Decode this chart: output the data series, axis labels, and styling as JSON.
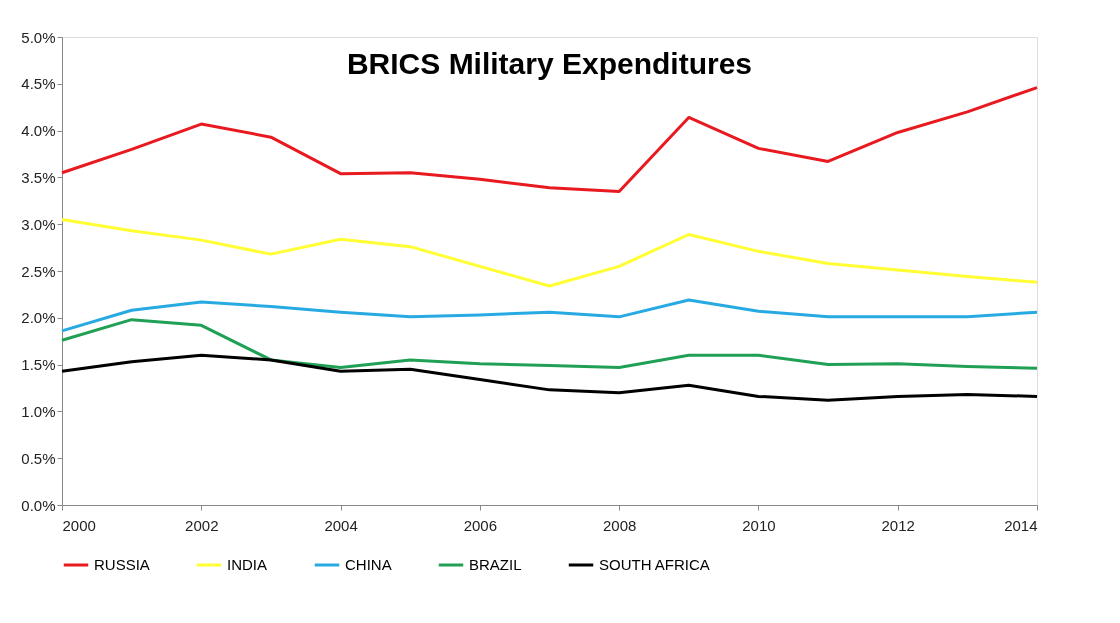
{
  "chart_data": {
    "type": "line",
    "title": "BRICS Military Expenditures",
    "x": [
      2000,
      2001,
      2002,
      2003,
      2004,
      2005,
      2006,
      2007,
      2008,
      2009,
      2010,
      2011,
      2012,
      2013,
      2014
    ],
    "series": [
      {
        "name": "RUSSIA",
        "color": "#e8191f",
        "values": [
          3.55,
          3.8,
          4.07,
          3.93,
          3.54,
          3.55,
          3.48,
          3.39,
          3.35,
          4.14,
          3.81,
          3.67,
          3.98,
          4.2,
          4.46
        ]
      },
      {
        "name": "INDIA",
        "color": "#ffff33",
        "values": [
          3.05,
          2.93,
          2.83,
          2.68,
          2.84,
          2.76,
          2.55,
          2.34,
          2.55,
          2.89,
          2.71,
          2.58,
          2.51,
          2.44,
          2.38
        ]
      },
      {
        "name": "CHINA",
        "color": "#27aae1",
        "values": [
          1.86,
          2.08,
          2.17,
          2.12,
          2.06,
          2.01,
          2.03,
          2.06,
          2.01,
          2.19,
          2.07,
          2.01,
          2.01,
          2.01,
          2.06
        ]
      },
      {
        "name": "BRAZIL",
        "color": "#1fa055",
        "values": [
          1.76,
          1.98,
          1.92,
          1.55,
          1.47,
          1.55,
          1.51,
          1.49,
          1.47,
          1.6,
          1.6,
          1.5,
          1.51,
          1.48,
          1.46
        ]
      },
      {
        "name": "SOUTH AFRICA",
        "color": "#000000",
        "values": [
          1.43,
          1.53,
          1.6,
          1.55,
          1.43,
          1.45,
          1.34,
          1.23,
          1.2,
          1.28,
          1.16,
          1.12,
          1.16,
          1.18,
          1.16
        ]
      }
    ],
    "xlim": [
      2000,
      2014
    ],
    "xticks": [
      2000,
      2002,
      2004,
      2006,
      2008,
      2010,
      2012,
      2014
    ],
    "ylim": [
      0,
      5
    ],
    "yticks": [
      {
        "value": 0,
        "label": "0.0%"
      },
      {
        "value": 0.5,
        "label": "0.5%"
      },
      {
        "value": 1,
        "label": "1.0%"
      },
      {
        "value": 1.5,
        "label": "1.5%"
      },
      {
        "value": 2,
        "label": "2.0%"
      },
      {
        "value": 2.5,
        "label": "2.5%"
      },
      {
        "value": 3,
        "label": "3.0%"
      },
      {
        "value": 3.5,
        "label": "3.5%"
      },
      {
        "value": 4,
        "label": "4.0%"
      },
      {
        "value": 4.5,
        "label": "4.5%"
      },
      {
        "value": 5,
        "label": "5.0%"
      }
    ],
    "legend": "bottom",
    "grid": false,
    "marker": "none",
    "line_style": "solid"
  }
}
